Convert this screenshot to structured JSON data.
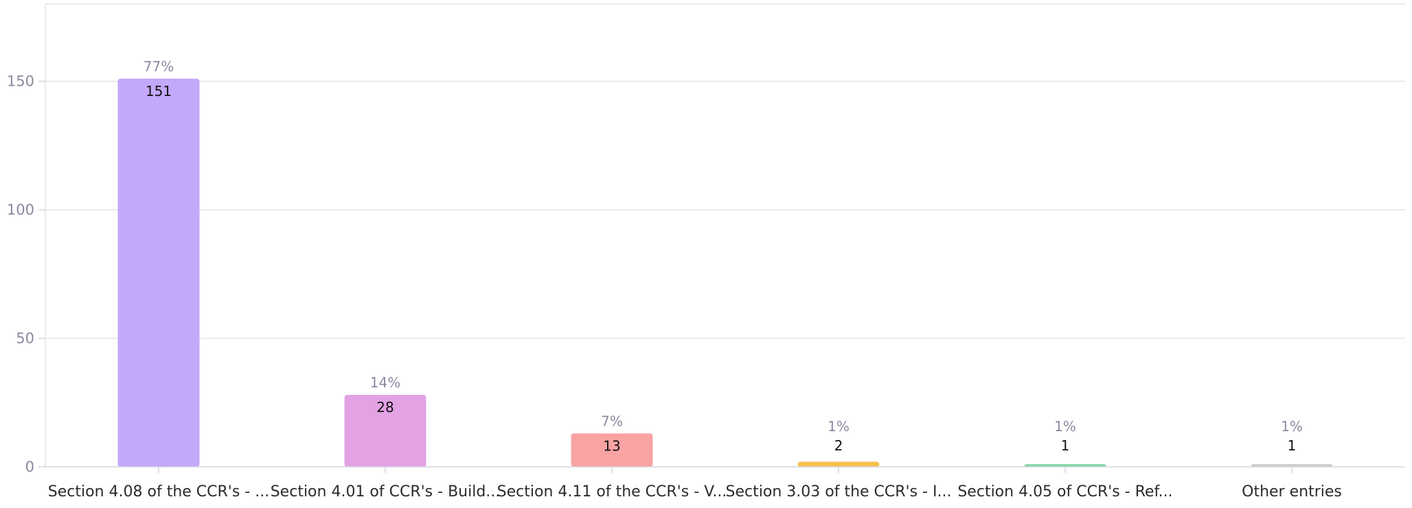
{
  "chart_data": {
    "type": "bar",
    "categories": [
      "Section 4.08 of the CCR's - ...",
      "Section 4.01 of CCR's - Build...",
      "Section 4.11 of the CCR's - V...",
      "Section 3.03 of the CCR's - I...",
      "Section 4.05 of CCR's - Ref...",
      "Other entries"
    ],
    "values": [
      151,
      28,
      13,
      2,
      1,
      1
    ],
    "percent_labels": [
      "77%",
      "14%",
      "7%",
      "1%",
      "1%",
      "1%"
    ],
    "value_labels": [
      "151",
      "28",
      "13",
      "2",
      "1",
      "1"
    ],
    "colors": [
      "#c4a8fb",
      "#e2a2e4",
      "#f9a3a3",
      "#f7c14e",
      "#86d8a8",
      "#cccccc"
    ],
    "y_ticks": [
      0,
      50,
      100,
      150
    ],
    "y_tick_labels": [
      "0",
      "50",
      "100",
      "150"
    ],
    "ylim": [
      0,
      180
    ],
    "grid": true,
    "xlabel": "",
    "ylabel": "",
    "title": ""
  }
}
